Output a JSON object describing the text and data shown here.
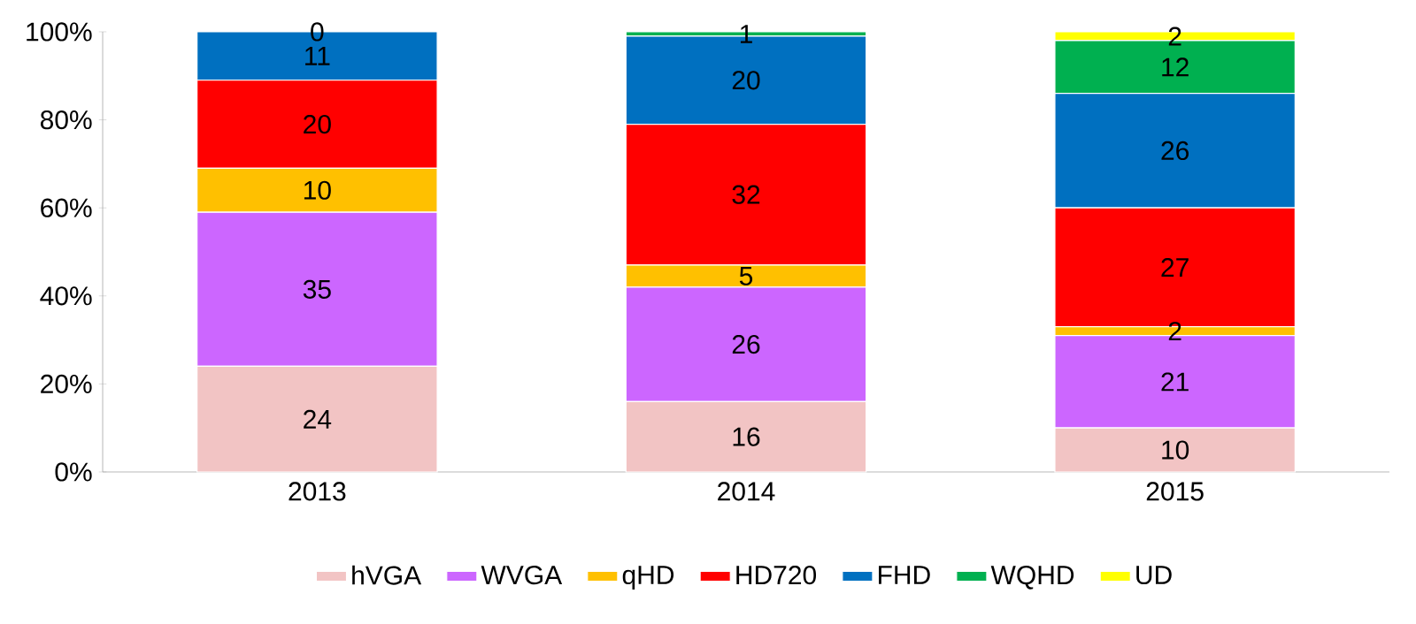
{
  "chart_data": {
    "type": "bar",
    "stacked": true,
    "legend": "bottom",
    "categories": [
      "2013",
      "2014",
      "2015"
    ],
    "ylim": [
      0,
      100
    ],
    "yticks": [
      {
        "value": 0,
        "label": "0%"
      },
      {
        "value": 20,
        "label": "20%"
      },
      {
        "value": 40,
        "label": "40%"
      },
      {
        "value": 60,
        "label": "60%"
      },
      {
        "value": 80,
        "label": "80%"
      },
      {
        "value": 100,
        "label": "100%"
      }
    ],
    "series": [
      {
        "name": "hVGA",
        "color": "#f2c4c4",
        "values": [
          24,
          16,
          10
        ],
        "value_labels": [
          "24",
          "16",
          "10"
        ]
      },
      {
        "name": "WVGA",
        "color": "#cc66ff",
        "values": [
          35,
          26,
          21
        ],
        "value_labels": [
          "35",
          "26",
          "21"
        ]
      },
      {
        "name": "qHD",
        "color": "#ffc000",
        "values": [
          10,
          5,
          2
        ],
        "value_labels": [
          "10",
          "5",
          "2"
        ]
      },
      {
        "name": "HD720",
        "color": "#ff0000",
        "values": [
          20,
          32,
          27
        ],
        "value_labels": [
          "20",
          "32",
          "27"
        ]
      },
      {
        "name": "FHD",
        "color": "#0070c0",
        "values": [
          11,
          20,
          26
        ],
        "value_labels": [
          "11",
          "20",
          "26"
        ]
      },
      {
        "name": "WQHD",
        "color": "#00b050",
        "values": [
          0,
          1,
          12
        ],
        "value_labels": [
          "0",
          "1",
          "12"
        ]
      },
      {
        "name": "UD",
        "color": "#ffff00",
        "values": [
          0,
          0,
          2
        ],
        "value_labels": [
          null,
          null,
          "2"
        ]
      }
    ]
  }
}
